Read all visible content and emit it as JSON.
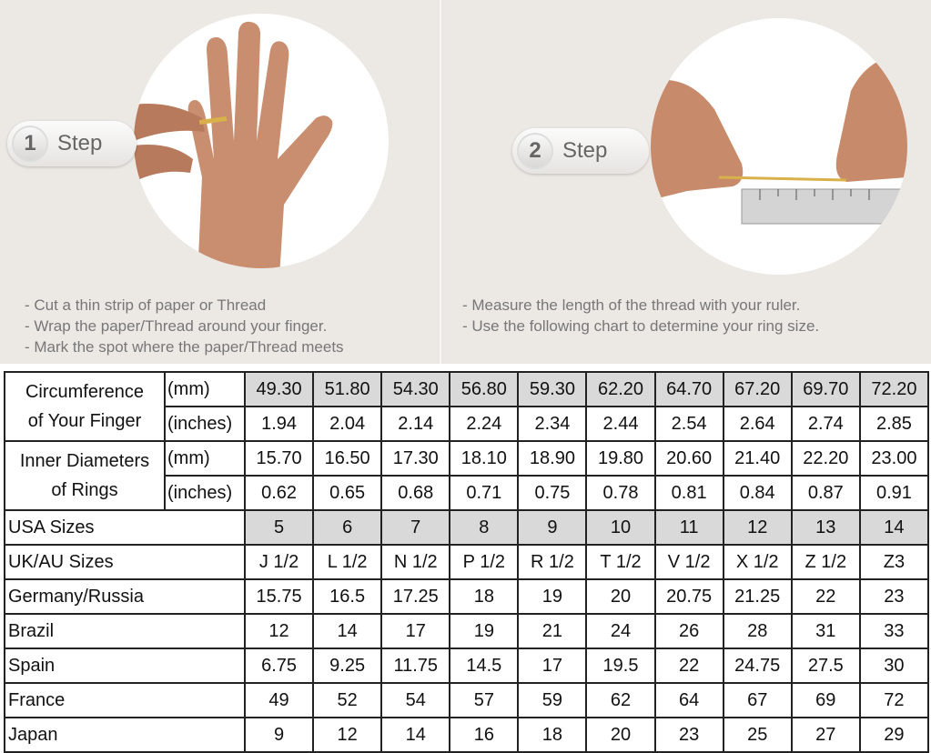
{
  "step1": {
    "number": "1",
    "label": "Step",
    "instructions": [
      "- Cut a thin strip of paper or Thread",
      "- Wrap the paper/Thread around your finger.",
      "- Mark the spot where the paper/Thread meets"
    ]
  },
  "step2": {
    "number": "2",
    "label": "Step",
    "instructions": [
      "- Measure the length of the thread with your ruler.",
      "- Use the following chart to determine your ring size."
    ]
  },
  "table": {
    "circumference": {
      "label_line1": "Circumference",
      "label_line2": "of Your Finger",
      "unit_mm": "(mm)",
      "unit_in": "(inches)",
      "mm": [
        "49.30",
        "51.80",
        "54.30",
        "56.80",
        "59.30",
        "62.20",
        "64.70",
        "67.20",
        "69.70",
        "72.20"
      ],
      "inches": [
        "1.94",
        "2.04",
        "2.14",
        "2.24",
        "2.34",
        "2.44",
        "2.54",
        "2.64",
        "2.74",
        "2.85"
      ]
    },
    "inner_diameter": {
      "label_line1": "Inner Diameters",
      "label_line2": "of Rings",
      "unit_mm": "(mm)",
      "unit_in": "(inches)",
      "mm": [
        "15.70",
        "16.50",
        "17.30",
        "18.10",
        "18.90",
        "19.80",
        "20.60",
        "21.40",
        "22.20",
        "23.00"
      ],
      "inches": [
        "0.62",
        "0.65",
        "0.68",
        "0.71",
        "0.75",
        "0.78",
        "0.81",
        "0.84",
        "0.87",
        "0.91"
      ]
    },
    "rows": [
      {
        "label": "USA Sizes",
        "values": [
          "5",
          "6",
          "7",
          "8",
          "9",
          "10",
          "11",
          "12",
          "13",
          "14"
        ]
      },
      {
        "label": "UK/AU Sizes",
        "values": [
          "J 1/2",
          "L 1/2",
          "N 1/2",
          "P 1/2",
          "R 1/2",
          "T 1/2",
          "V 1/2",
          "X 1/2",
          "Z 1/2",
          "Z3"
        ]
      },
      {
        "label": "Germany/Russia",
        "values": [
          "15.75",
          "16.5",
          "17.25",
          "18",
          "19",
          "20",
          "20.75",
          "21.25",
          "22",
          "23"
        ]
      },
      {
        "label": "Brazil",
        "values": [
          "12",
          "14",
          "17",
          "19",
          "21",
          "24",
          "26",
          "28",
          "31",
          "33"
        ]
      },
      {
        "label": "Spain",
        "values": [
          "6.75",
          "9.25",
          "11.75",
          "14.5",
          "17",
          "19.5",
          "22",
          "24.75",
          "27.5",
          "30"
        ]
      },
      {
        "label": "France",
        "values": [
          "49",
          "52",
          "54",
          "57",
          "59",
          "62",
          "64",
          "67",
          "69",
          "72"
        ]
      },
      {
        "label": "Japan",
        "values": [
          "9",
          "12",
          "14",
          "16",
          "18",
          "20",
          "23",
          "25",
          "27",
          "29"
        ]
      }
    ]
  },
  "colors": {
    "highlight": "#d9d9d9",
    "background": "#ece9e5"
  }
}
